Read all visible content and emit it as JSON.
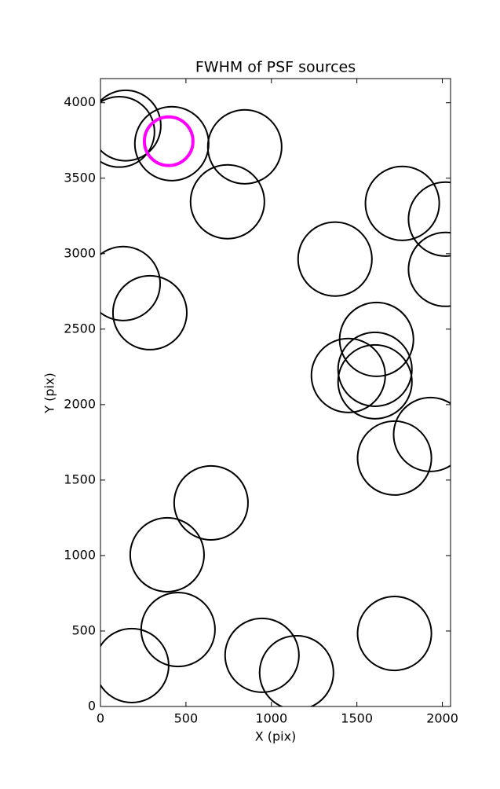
{
  "chart_data": {
    "type": "scatter",
    "title": "FWHM of PSF sources",
    "x_label": "X (pix)",
    "y_label": "Y (pix)",
    "xlim": [
      0,
      2048
    ],
    "ylim": [
      0,
      4160
    ],
    "xticks": [
      0,
      500,
      1000,
      1500,
      2000
    ],
    "yticks": [
      0,
      500,
      1000,
      1500,
      2000,
      2500,
      3000,
      3500,
      4000
    ],
    "series": [
      {
        "color": "#000000",
        "x": [
          147,
          110,
          417,
          844,
          743,
          1766,
          2018,
          1372,
          2018,
          133,
          289,
          1615,
          1606,
          1450,
          1606,
          1931,
          1720,
          647,
          390,
          454,
          183,
          945,
          1147,
          1720
        ],
        "y": [
          3849,
          3807,
          3729,
          3708,
          3344,
          3333,
          3229,
          2964,
          2896,
          2802,
          2609,
          2432,
          2234,
          2193,
          2151,
          1802,
          1646,
          1349,
          1005,
          510,
          271,
          339,
          224,
          484
        ],
        "sizes": [
          206,
          206,
          216,
          216,
          216,
          216,
          216,
          216,
          216,
          216,
          216,
          216,
          216,
          216,
          216,
          216,
          216,
          216,
          216,
          216,
          216,
          216,
          216,
          216
        ]
      },
      {
        "color": "#ff00ff",
        "x": [
          399
        ],
        "y": [
          3745
        ],
        "sizes": [
          142
        ]
      }
    ]
  }
}
